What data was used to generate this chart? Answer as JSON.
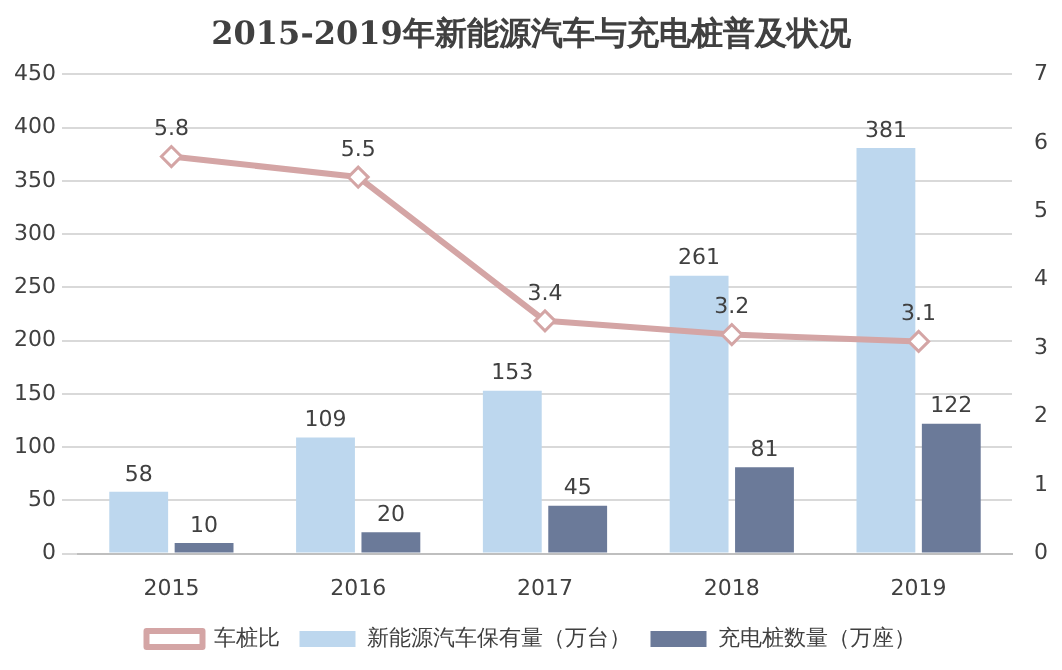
{
  "chart_data": {
    "type": "bar",
    "title": "2015-2019年新能源汽车与充电桩普及状况",
    "categories": [
      "2015",
      "2016",
      "2017",
      "2018",
      "2019"
    ],
    "series": [
      {
        "name": "新能源汽车保有量（万台）",
        "color": "#bdd7ee",
        "values": [
          58,
          109,
          153,
          261,
          381
        ]
      },
      {
        "name": "充电桩数量（万座）",
        "color": "#6b7a99",
        "values": [
          10,
          20,
          45,
          81,
          122
        ]
      },
      {
        "name": "车桩比",
        "type": "line",
        "axis": "y2",
        "color": "#d4a5a5",
        "values": [
          5.8,
          5.5,
          3.4,
          3.2,
          3.1
        ]
      }
    ],
    "ylim": [
      0,
      450
    ],
    "yticks": [
      0,
      50,
      100,
      150,
      200,
      250,
      300,
      350,
      400,
      450
    ],
    "y2lim": [
      0,
      7
    ],
    "y2ticks": [
      0,
      1,
      2,
      3,
      4,
      5,
      6,
      7
    ],
    "grid": "y",
    "legend": "bottom",
    "data_labels": true,
    "marker": "diamond"
  }
}
